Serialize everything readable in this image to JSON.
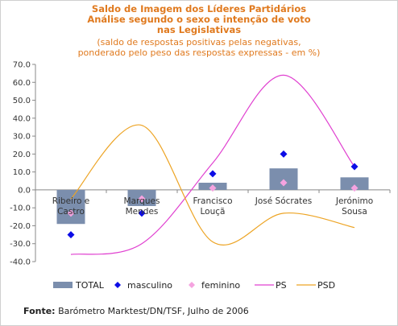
{
  "title": {
    "line1": "Saldo de Imagem dos Líderes Partidários",
    "line2": "Análise segundo o sexo e intenção de voto",
    "line3": "nas Legislativas",
    "sub1": "(saldo de respostas positivas pelas negativas,",
    "sub2": "ponderado pelo peso das respostas expressas - em %)"
  },
  "source": {
    "label": "Fonte:",
    "text": "Barómetro Marktest/DN/TSF, Julho de 2006"
  },
  "colors": {
    "TOTAL": "#7b8ead",
    "masculino": "#0d0de6",
    "feminino": "#f5a3e0",
    "PS": "#e040d0",
    "PSD": "#eda424"
  },
  "chart_data": {
    "type": "bar",
    "categories": [
      [
        "Ribeiro e",
        "Castro"
      ],
      [
        "Marques",
        "Mendes"
      ],
      [
        "Francisco",
        "Louçã"
      ],
      [
        "José Sócrates"
      ],
      [
        "Jerónimo",
        "Sousa"
      ]
    ],
    "ylim": [
      -40,
      70
    ],
    "yticks": [
      "70.0",
      "60.0",
      "50.0",
      "40.0",
      "30.0",
      "20.0",
      "10.0",
      "0.0",
      "-10.0",
      "-20.0",
      "-30.0",
      "-40.0"
    ],
    "grid": false,
    "legend_position": "bottom",
    "series": [
      {
        "name": "TOTAL",
        "kind": "bar",
        "values": [
          -19,
          -9,
          4,
          12,
          7
        ]
      },
      {
        "name": "masculino",
        "kind": "marker-diamond",
        "values": [
          -25,
          -13,
          9,
          20,
          13
        ]
      },
      {
        "name": "feminino",
        "kind": "marker-diamond",
        "values": [
          -13,
          -5,
          1,
          4,
          1
        ]
      },
      {
        "name": "PS",
        "kind": "smooth-line",
        "values": [
          -36,
          -30,
          15,
          64,
          13
        ]
      },
      {
        "name": "PSD",
        "kind": "smooth-line",
        "values": [
          -5,
          36,
          -29,
          -13,
          -21
        ]
      }
    ]
  }
}
